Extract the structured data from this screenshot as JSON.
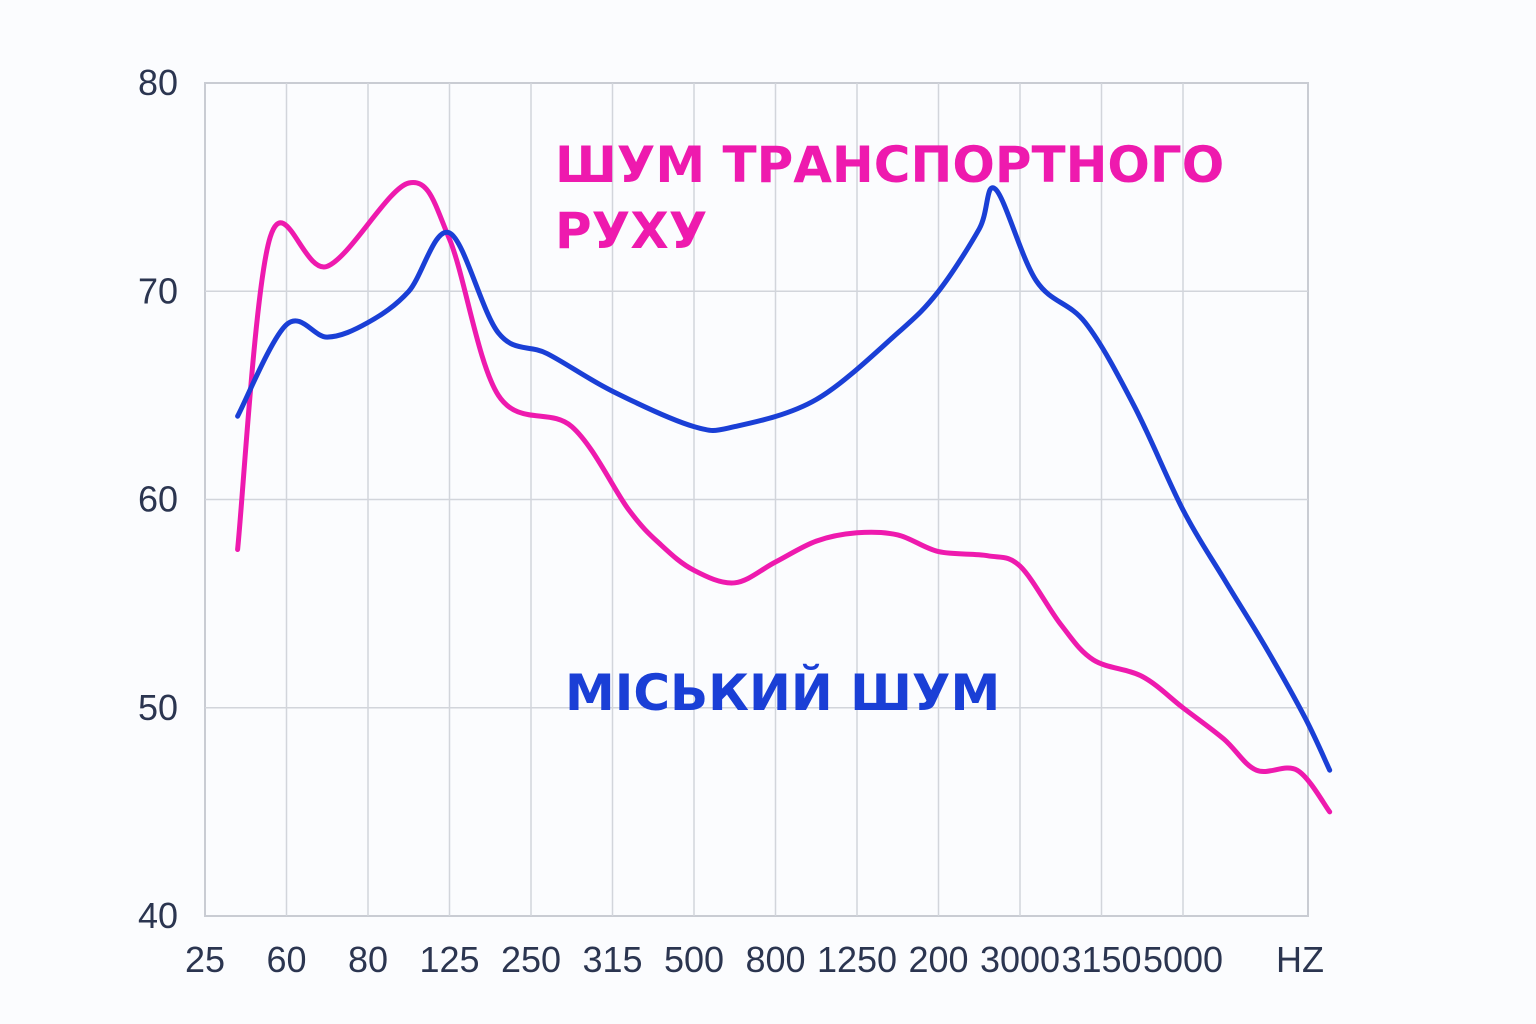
{
  "chart_data": {
    "type": "line",
    "title": "",
    "xlabel": "",
    "ylabel": "",
    "x_unit_label": "HZ",
    "categories": [
      "25",
      "60",
      "80",
      "125",
      "250",
      "315",
      "500",
      "800",
      "1250",
      "200",
      "3000",
      "3150",
      "5000"
    ],
    "y_ticks": [
      "40",
      "50",
      "60",
      "70",
      "80"
    ],
    "ylim": [
      40,
      80
    ],
    "grid": true,
    "legend": "inline labels",
    "series": [
      {
        "name": "ШУМ ТРАНСПОРТНОГО РУХУ",
        "label_lines": [
          "ШУМ ТРАНСПОРТНОГО",
          "РУХУ"
        ],
        "color": "#ee1aae",
        "points": [
          [
            0.4,
            57.6
          ],
          [
            0.8,
            72.6
          ],
          [
            1.5,
            71.2
          ],
          [
            2.5,
            75.2
          ],
          [
            3.0,
            72.5
          ],
          [
            3.6,
            65.0
          ],
          [
            4.5,
            63.5
          ],
          [
            5.2,
            59.5
          ],
          [
            5.6,
            57.8
          ],
          [
            6.0,
            56.6
          ],
          [
            6.5,
            56.0
          ],
          [
            7.0,
            57.0
          ],
          [
            7.5,
            58.0
          ],
          [
            8.0,
            58.4
          ],
          [
            8.5,
            58.3
          ],
          [
            9.0,
            57.5
          ],
          [
            9.6,
            57.3
          ],
          [
            10.0,
            56.8
          ],
          [
            10.5,
            54.0
          ],
          [
            10.9,
            52.3
          ],
          [
            11.5,
            51.5
          ],
          [
            12.0,
            50.0
          ],
          [
            12.5,
            48.5
          ],
          [
            12.9,
            47.0
          ],
          [
            13.4,
            47.0
          ],
          [
            13.8,
            45.0
          ]
        ]
      },
      {
        "name": "МІСЬКИЙ ШУМ",
        "label_lines": [
          "МІСЬКИЙ ШУМ"
        ],
        "color": "#1a3fd6",
        "points": [
          [
            0.4,
            64.0
          ],
          [
            1.0,
            68.4
          ],
          [
            1.5,
            67.8
          ],
          [
            2.0,
            68.5
          ],
          [
            2.5,
            70.0
          ],
          [
            3.0,
            72.8
          ],
          [
            3.6,
            68.0
          ],
          [
            4.2,
            67.0
          ],
          [
            5.0,
            65.2
          ],
          [
            6.0,
            63.5
          ],
          [
            6.5,
            63.5
          ],
          [
            7.5,
            64.8
          ],
          [
            8.5,
            68.0
          ],
          [
            9.0,
            70.0
          ],
          [
            9.5,
            73.0
          ],
          [
            9.7,
            74.9
          ],
          [
            10.2,
            70.5
          ],
          [
            10.8,
            68.5
          ],
          [
            11.4,
            64.5
          ],
          [
            12.0,
            59.5
          ],
          [
            12.5,
            56.2
          ],
          [
            13.0,
            53.0
          ],
          [
            13.5,
            49.5
          ],
          [
            13.8,
            47.0
          ]
        ]
      }
    ]
  }
}
